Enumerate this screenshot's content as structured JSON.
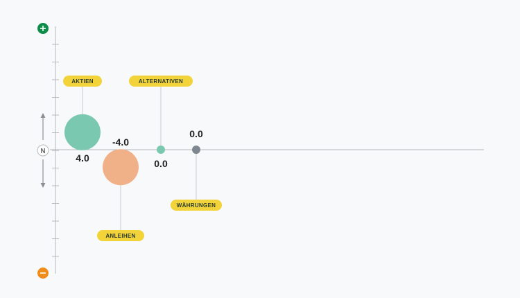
{
  "chart_data": {
    "type": "scatter",
    "y_min_label_icon": "minus-circle-icon",
    "y_max_label_icon": "plus-circle-icon",
    "neutral_label": "N",
    "ylim": [
      -10,
      10
    ],
    "grid": false,
    "points": [
      {
        "name": "AKTIEN",
        "value": 4.0,
        "value_label": "4.0",
        "color": "#7ac8b0",
        "size": "large",
        "tag": "above"
      },
      {
        "name": "ANLEIHEN",
        "value": -4.0,
        "value_label": "-4.0",
        "color": "#f0b088",
        "size": "large",
        "tag": "below"
      },
      {
        "name": "ALTERNATIVEN",
        "value": 0.0,
        "value_label": "0.0",
        "color": "#7ac8b0",
        "size": "small",
        "tag": "above"
      },
      {
        "name": "WÄHRUNGEN",
        "value": 0.0,
        "value_label": "0.0",
        "color": "#7e8690",
        "size": "small",
        "tag": "below"
      }
    ],
    "colors": {
      "plus": "#0e8c4a",
      "minus": "#f08c1a",
      "tag_bg": "#f2d43a",
      "axis": "#b5b8bc"
    }
  }
}
